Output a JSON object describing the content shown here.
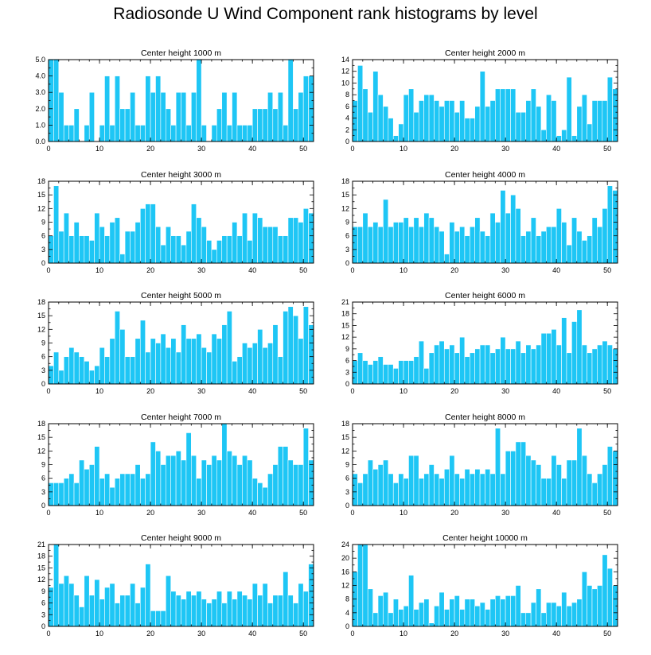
{
  "title": "Radiosonde U Wind Component rank histograms by level",
  "chart_data": [
    {
      "type": "bar",
      "title": "Center height 1000 m",
      "xlabel": "",
      "ylabel": "",
      "xlim": [
        0,
        52
      ],
      "ylim": [
        0,
        5.0
      ],
      "yticks": [
        "0.0",
        "1.0",
        "2.0",
        "3.0",
        "4.0",
        "5.0"
      ],
      "ytick_values": [
        0,
        1,
        2,
        3,
        4,
        5
      ],
      "xticks": [
        0,
        10,
        20,
        30,
        40,
        50
      ],
      "values": [
        5,
        5,
        3,
        1,
        1,
        2,
        0,
        1,
        3,
        0,
        1,
        4,
        1,
        4,
        2,
        2,
        3,
        1,
        1,
        4,
        3,
        4,
        3,
        2,
        1,
        3,
        3,
        1,
        3,
        5,
        1,
        0,
        1,
        2,
        3,
        1,
        3,
        1,
        1,
        1,
        2,
        2,
        2,
        3,
        2,
        3,
        1,
        5,
        2,
        3,
        4,
        4
      ]
    },
    {
      "type": "bar",
      "title": "Center height 2000 m",
      "xlabel": "",
      "ylabel": "",
      "xlim": [
        0,
        52
      ],
      "ylim": [
        0,
        14
      ],
      "yticks": [
        "0",
        "2",
        "4",
        "6",
        "8",
        "10",
        "12",
        "14"
      ],
      "ytick_values": [
        0,
        2,
        4,
        6,
        8,
        10,
        12,
        14
      ],
      "xticks": [
        0,
        10,
        20,
        30,
        40,
        50
      ],
      "values": [
        7,
        13,
        9,
        5,
        12,
        8,
        6,
        4,
        1,
        3,
        8,
        9,
        5,
        7,
        8,
        8,
        7,
        6,
        7,
        7,
        5,
        7,
        4,
        4,
        6,
        12,
        6,
        7,
        9,
        9,
        9,
        9,
        5,
        5,
        7,
        9,
        6,
        2,
        8,
        7,
        1,
        2,
        11,
        1,
        6,
        8,
        3,
        7,
        7,
        7,
        11,
        9
      ]
    },
    {
      "type": "bar",
      "title": "Center height 3000 m",
      "xlabel": "",
      "ylabel": "",
      "xlim": [
        0,
        52
      ],
      "ylim": [
        0,
        18
      ],
      "yticks": [
        "0",
        "3",
        "6",
        "9",
        "12",
        "15",
        "18"
      ],
      "ytick_values": [
        0,
        3,
        6,
        9,
        12,
        15,
        18
      ],
      "xticks": [
        0,
        10,
        20,
        30,
        40,
        50
      ],
      "values": [
        6,
        17,
        7,
        11,
        6,
        9,
        6,
        6,
        5,
        11,
        8,
        6,
        9,
        10,
        2,
        7,
        7,
        9,
        12,
        13,
        13,
        8,
        4,
        8,
        6,
        6,
        4,
        7,
        13,
        10,
        8,
        5,
        3,
        5,
        6,
        6,
        9,
        6,
        11,
        5,
        11,
        10,
        8,
        8,
        8,
        6,
        6,
        10,
        10,
        9,
        12,
        11
      ]
    },
    {
      "type": "bar",
      "title": "Center height 4000 m",
      "xlabel": "",
      "ylabel": "",
      "xlim": [
        0,
        52
      ],
      "ylim": [
        0,
        18
      ],
      "yticks": [
        "0",
        "3",
        "6",
        "9",
        "12",
        "15",
        "18"
      ],
      "ytick_values": [
        0,
        3,
        6,
        9,
        12,
        15,
        18
      ],
      "xticks": [
        0,
        10,
        20,
        30,
        40,
        50
      ],
      "values": [
        8,
        8,
        11,
        8,
        9,
        8,
        14,
        8,
        9,
        9,
        10,
        8,
        10,
        8,
        11,
        10,
        8,
        7,
        2,
        9,
        7,
        8,
        6,
        8,
        10,
        7,
        6,
        11,
        9,
        16,
        11,
        15,
        12,
        6,
        7,
        10,
        6,
        7,
        8,
        8,
        12,
        9,
        4,
        10,
        7,
        5,
        6,
        10,
        8,
        12,
        17,
        16
      ]
    },
    {
      "type": "bar",
      "title": "Center height 5000 m",
      "xlabel": "",
      "ylabel": "",
      "xlim": [
        0,
        52
      ],
      "ylim": [
        0,
        18
      ],
      "yticks": [
        "0",
        "3",
        "6",
        "9",
        "12",
        "15",
        "18"
      ],
      "ytick_values": [
        0,
        3,
        6,
        9,
        12,
        15,
        18
      ],
      "xticks": [
        0,
        10,
        20,
        30,
        40,
        50
      ],
      "values": [
        4,
        7,
        3,
        6,
        8,
        7,
        6,
        5,
        3,
        4,
        8,
        6,
        10,
        16,
        12,
        6,
        6,
        10,
        14,
        7,
        10,
        9,
        11,
        8,
        10,
        7,
        13,
        10,
        10,
        11,
        8,
        7,
        11,
        10,
        13,
        16,
        5,
        6,
        9,
        8,
        9,
        12,
        8,
        9,
        13,
        6,
        16,
        17,
        15,
        10,
        17,
        13
      ]
    },
    {
      "type": "bar",
      "title": "Center height 6000 m",
      "xlabel": "",
      "ylabel": "",
      "xlim": [
        0,
        52
      ],
      "ylim": [
        0,
        21
      ],
      "yticks": [
        "0",
        "3",
        "6",
        "9",
        "12",
        "15",
        "18",
        "21"
      ],
      "ytick_values": [
        0,
        3,
        6,
        9,
        12,
        15,
        18,
        21
      ],
      "xticks": [
        0,
        10,
        20,
        30,
        40,
        50
      ],
      "values": [
        6,
        8,
        6,
        5,
        6,
        7,
        5,
        5,
        4,
        6,
        6,
        6,
        7,
        11,
        4,
        8,
        10,
        11,
        9,
        10,
        8,
        12,
        7,
        8,
        9,
        10,
        10,
        8,
        9,
        12,
        9,
        9,
        11,
        8,
        10,
        9,
        10,
        13,
        13,
        14,
        10,
        17,
        8,
        16,
        19,
        10,
        8,
        9,
        10,
        11,
        10,
        9
      ]
    },
    {
      "type": "bar",
      "title": "Center height 7000 m",
      "xlabel": "",
      "ylabel": "",
      "xlim": [
        0,
        52
      ],
      "ylim": [
        0,
        18
      ],
      "yticks": [
        "0",
        "3",
        "6",
        "9",
        "12",
        "15",
        "18"
      ],
      "ytick_values": [
        0,
        3,
        6,
        9,
        12,
        15,
        18
      ],
      "xticks": [
        0,
        10,
        20,
        30,
        40,
        50
      ],
      "values": [
        5,
        5,
        5,
        6,
        7,
        5,
        10,
        8,
        9,
        13,
        6,
        7,
        4,
        6,
        7,
        7,
        7,
        9,
        6,
        7,
        14,
        12,
        9,
        11,
        11,
        12,
        10,
        16,
        11,
        6,
        10,
        9,
        11,
        10,
        18,
        12,
        11,
        9,
        11,
        10,
        6,
        5,
        4,
        7,
        9,
        13,
        13,
        10,
        9,
        9,
        17,
        10
      ]
    },
    {
      "type": "bar",
      "title": "Center height 8000 m",
      "xlabel": "",
      "ylabel": "",
      "xlim": [
        0,
        52
      ],
      "ylim": [
        0,
        18
      ],
      "yticks": [
        "0",
        "3",
        "6",
        "9",
        "12",
        "15",
        "18"
      ],
      "ytick_values": [
        0,
        3,
        6,
        9,
        12,
        15,
        18
      ],
      "xticks": [
        0,
        10,
        20,
        30,
        40,
        50
      ],
      "values": [
        7,
        5,
        7,
        10,
        8,
        9,
        10,
        7,
        5,
        7,
        6,
        11,
        11,
        6,
        7,
        9,
        7,
        6,
        8,
        11,
        7,
        6,
        8,
        7,
        8,
        7,
        8,
        7,
        17,
        7,
        12,
        12,
        14,
        14,
        11,
        10,
        9,
        6,
        6,
        11,
        9,
        6,
        10,
        10,
        17,
        11,
        7,
        5,
        7,
        9,
        13,
        12
      ]
    },
    {
      "type": "bar",
      "title": "Center height 9000 m",
      "xlabel": "",
      "ylabel": "",
      "xlim": [
        0,
        52
      ],
      "ylim": [
        0,
        21
      ],
      "yticks": [
        "0",
        "3",
        "6",
        "9",
        "12",
        "15",
        "18",
        "21"
      ],
      "ytick_values": [
        0,
        3,
        6,
        9,
        12,
        15,
        18,
        21
      ],
      "xticks": [
        0,
        10,
        20,
        30,
        40,
        50
      ],
      "values": [
        10,
        21,
        11,
        13,
        11,
        8,
        5,
        13,
        8,
        12,
        7,
        10,
        11,
        6,
        8,
        8,
        11,
        6,
        10,
        16,
        4,
        4,
        4,
        13,
        9,
        8,
        7,
        9,
        8,
        9,
        7,
        6,
        7,
        9,
        6,
        9,
        7,
        9,
        8,
        7,
        11,
        8,
        11,
        6,
        8,
        8,
        14,
        8,
        6,
        11,
        9,
        16
      ]
    },
    {
      "type": "bar",
      "title": "Center height 10000 m",
      "xlabel": "",
      "ylabel": "",
      "xlim": [
        0,
        52
      ],
      "ylim": [
        0,
        24
      ],
      "yticks": [
        "0",
        "4",
        "8",
        "12",
        "16",
        "20",
        "24"
      ],
      "ytick_values": [
        0,
        4,
        8,
        12,
        16,
        20,
        24
      ],
      "xticks": [
        0,
        10,
        20,
        30,
        40,
        50
      ],
      "values": [
        16,
        24,
        24,
        11,
        4,
        9,
        10,
        4,
        8,
        5,
        6,
        15,
        5,
        7,
        8,
        1,
        6,
        10,
        5,
        8,
        9,
        5,
        8,
        8,
        6,
        7,
        5,
        8,
        9,
        8,
        9,
        9,
        12,
        4,
        4,
        7,
        11,
        4,
        7,
        7,
        6,
        10,
        6,
        7,
        8,
        16,
        12,
        11,
        12,
        21,
        17,
        12
      ]
    }
  ]
}
